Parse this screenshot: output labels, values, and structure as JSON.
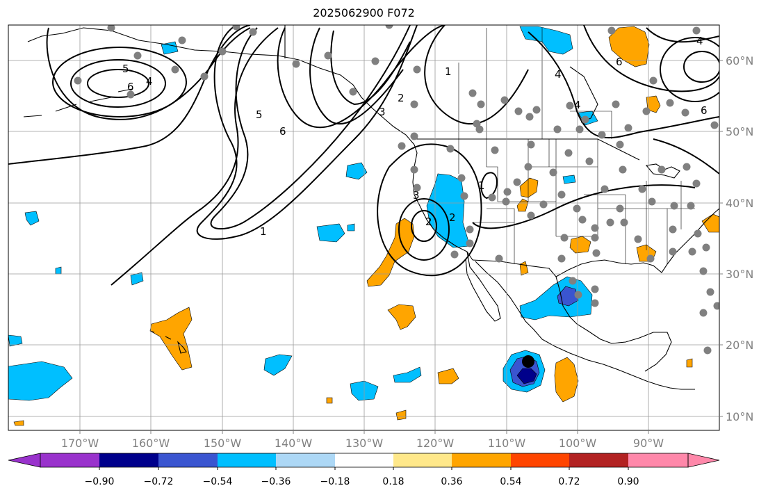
{
  "title": "2025062900 F072",
  "map": {
    "projection": "PlateCarree",
    "lon_range": [
      -180,
      -80
    ],
    "lat_range": [
      8,
      65
    ],
    "lon_ticks": [
      "170°W",
      "160°W",
      "150°W",
      "140°W",
      "130°W",
      "120°W",
      "110°W",
      "100°W",
      "90°W"
    ],
    "lat_ticks": [
      "60°N",
      "50°N",
      "40°N",
      "30°N",
      "20°N",
      "10°N"
    ],
    "gridlines": true,
    "contour_labels": [
      "5",
      "6",
      "4",
      "5",
      "6",
      "2",
      "3",
      "1",
      "2",
      "3",
      "2",
      "1",
      "4",
      "1",
      "6",
      "4",
      "4",
      "6"
    ],
    "storm_marker": "filled black circle near 17.5°N 107°W"
  },
  "colorbar": {
    "tick_labels": [
      "−0.90",
      "−0.72",
      "−0.54",
      "−0.36",
      "−0.18",
      "0.18",
      "0.36",
      "0.54",
      "0.72",
      "0.90"
    ],
    "colors": [
      "#9932cc",
      "#00008b",
      "#3a55d0",
      "#00bfff",
      "#add8f6",
      "#ffffff",
      "#ffe88a",
      "#ffa500",
      "#ff4500",
      "#b22222",
      "#ff88aa"
    ],
    "extend": "both"
  },
  "chart_data": {
    "type": "heatmap",
    "title": "2025062900 F072",
    "levels": [
      -0.9,
      -0.72,
      -0.54,
      -0.36,
      -0.18,
      0.18,
      0.36,
      0.54,
      0.72,
      0.9
    ],
    "xlim": [
      -180,
      -80
    ],
    "ylim": [
      8,
      65
    ]
  }
}
